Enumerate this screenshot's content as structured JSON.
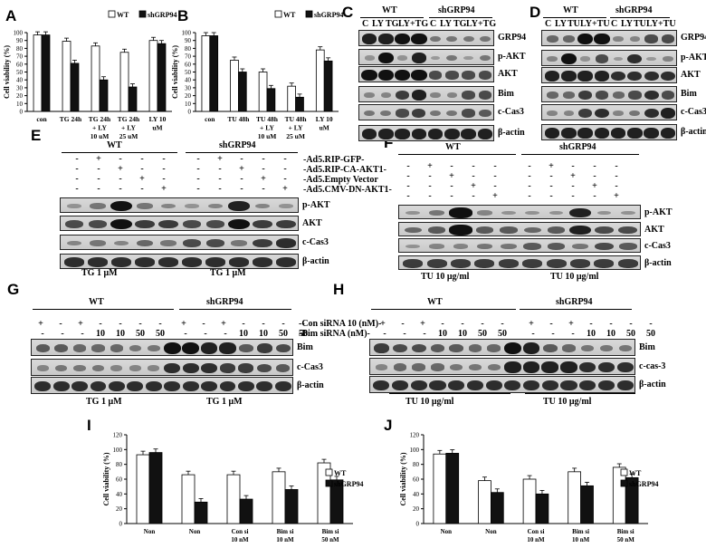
{
  "panels": {
    "A": "A",
    "B": "B",
    "C": "C",
    "D": "D",
    "E": "E",
    "F": "F",
    "G": "G",
    "H": "H",
    "I": "I",
    "J": "J"
  },
  "groups": {
    "wt": "WT",
    "sh": "shGRP94"
  },
  "c_lanes": [
    "C",
    "LY",
    "TG",
    "LY+TG"
  ],
  "d_lanes": [
    "C",
    "LY",
    "TU",
    "LY+TU"
  ],
  "cd_rows": [
    "GRP94",
    "p-AKT",
    "AKT",
    "Bim",
    "c-Cas3",
    "β-actin"
  ],
  "ef_treat": [
    "-Ad5.RIP-GFP-",
    "-Ad5.RIP-CA-AKT1-",
    "-Ad5.Empty Vector",
    "-Ad5.CMV-DN-AKT1-"
  ],
  "ef_rows": [
    "p-AKT",
    "AKT",
    "c-Cas3",
    "β-actin"
  ],
  "gh_treat": [
    "-Con siRNA 10 (nM)-",
    "-Bim siRNA  (nM)-"
  ],
  "gh_nums": [
    "10",
    "10",
    "50",
    "50"
  ],
  "g_rows": [
    "Bim",
    "c-Cas3",
    "β-actin"
  ],
  "h_rows": [
    "Bim",
    "c-cas-3",
    "β-actin"
  ],
  "captions": {
    "tg": "TG 1 μM",
    "tu": "TU 10 μg/ml"
  },
  "colors": {
    "wt": "#ffffff",
    "sh": "#111111"
  },
  "chart_data": [
    {
      "panel": "A",
      "type": "bar",
      "ylabel": "Cell viability (%)",
      "ylim": [
        0,
        100
      ],
      "yticks": [
        0,
        10,
        20,
        30,
        40,
        50,
        60,
        70,
        80,
        90,
        100
      ],
      "categories": [
        "con",
        "TG 24h",
        "TG 24h + LY 10 uM",
        "TG 24h + LY 25 uM",
        "LY 10 uM"
      ],
      "series": [
        {
          "name": "WT",
          "values": [
            97,
            89,
            83,
            75,
            90
          ]
        },
        {
          "name": "shGRP94",
          "values": [
            97,
            61,
            40,
            31,
            86
          ]
        }
      ]
    },
    {
      "panel": "B",
      "type": "bar",
      "ylabel": "Cell viability (%)",
      "ylim": [
        0,
        100
      ],
      "yticks": [
        0,
        10,
        20,
        30,
        40,
        50,
        60,
        70,
        80,
        90,
        100
      ],
      "categories": [
        "con",
        "TU 48h",
        "TU 48h + LY 10 uM",
        "TU 48h + LY 25 uM",
        "LY 10 uM"
      ],
      "series": [
        {
          "name": "WT",
          "values": [
            96,
            65,
            50,
            32,
            78
          ]
        },
        {
          "name": "shGRP94",
          "values": [
            96,
            50,
            29,
            18,
            64
          ]
        }
      ]
    },
    {
      "panel": "I",
      "type": "bar",
      "ylabel": "Cell viability (%)",
      "ylim": [
        0,
        120
      ],
      "yticks": [
        0,
        20,
        40,
        60,
        80,
        100,
        120
      ],
      "categories": [
        "Non",
        "Non",
        "Con si 10 nM",
        "Bim si 10 nM",
        "Bim si 50 nM"
      ],
      "series": [
        {
          "name": "WT",
          "values": [
            93,
            66,
            66,
            70,
            82
          ]
        },
        {
          "name": "shGRP94",
          "values": [
            96,
            29,
            33,
            46,
            59
          ]
        }
      ]
    },
    {
      "panel": "J",
      "type": "bar",
      "ylabel": "Cell viability (%)",
      "ylim": [
        0,
        120
      ],
      "yticks": [
        0,
        20,
        40,
        60,
        80,
        100,
        120
      ],
      "categories": [
        "Non",
        "Non",
        "Con si 10 nM",
        "Bim si 10 nM",
        "Bim si 50 nM"
      ],
      "series": [
        {
          "name": "WT",
          "values": [
            94,
            58,
            60,
            70,
            76
          ]
        },
        {
          "name": "shGRP94",
          "values": [
            95,
            42,
            40,
            51,
            62
          ]
        }
      ]
    }
  ]
}
